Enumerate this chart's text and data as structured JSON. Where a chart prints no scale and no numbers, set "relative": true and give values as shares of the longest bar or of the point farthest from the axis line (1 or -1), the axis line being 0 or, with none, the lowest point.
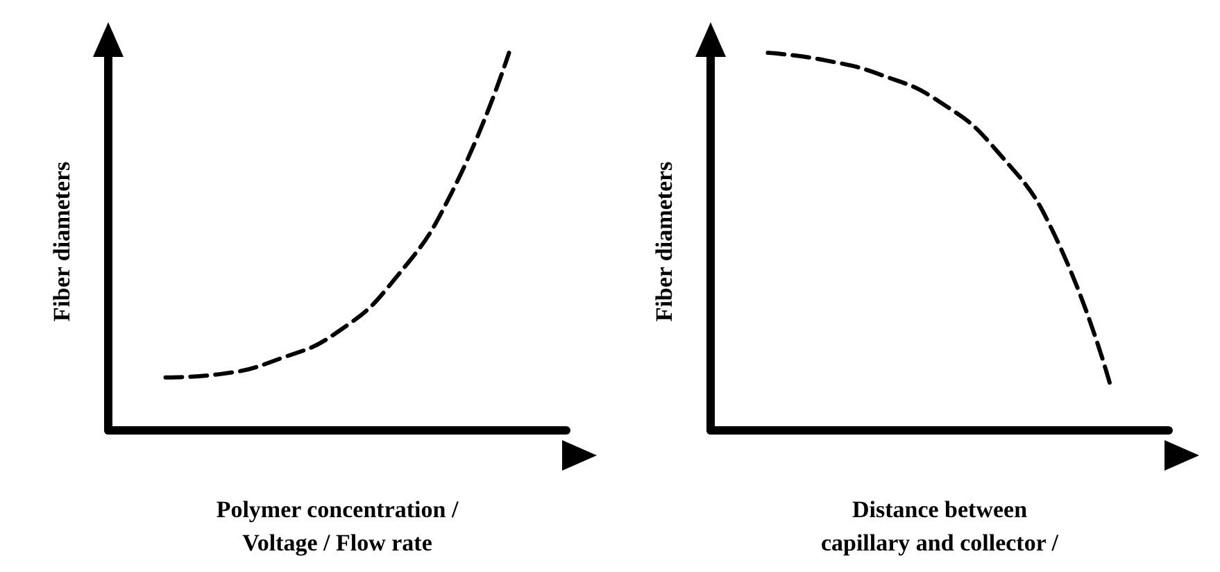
{
  "chart_data": [
    {
      "type": "line",
      "relative": true,
      "ylabel": "Fiber diameters",
      "xlabel": "Polymer concentration /\nVoltage / Flow rate",
      "categories": [
        null,
        null,
        null,
        null,
        null,
        null,
        null,
        null,
        null
      ],
      "values": [
        null,
        0.14,
        0.15,
        0.19,
        0.26,
        0.4,
        0.63,
        1.0,
        null
      ],
      "color": "#000000",
      "line_style": "dashed",
      "marker": "none",
      "grid": false
    },
    {
      "type": "line",
      "relative": true,
      "ylabel": "Fiber diameters",
      "xlabel": "Distance between\ncapillary and collector /",
      "categories": [
        null,
        null,
        null,
        null,
        null,
        null,
        null,
        null,
        null
      ],
      "values": [
        null,
        1.0,
        0.98,
        0.94,
        0.87,
        0.74,
        0.52,
        0.11,
        null
      ],
      "color": "#000000",
      "line_style": "dashed",
      "marker": "none",
      "grid": false
    }
  ]
}
